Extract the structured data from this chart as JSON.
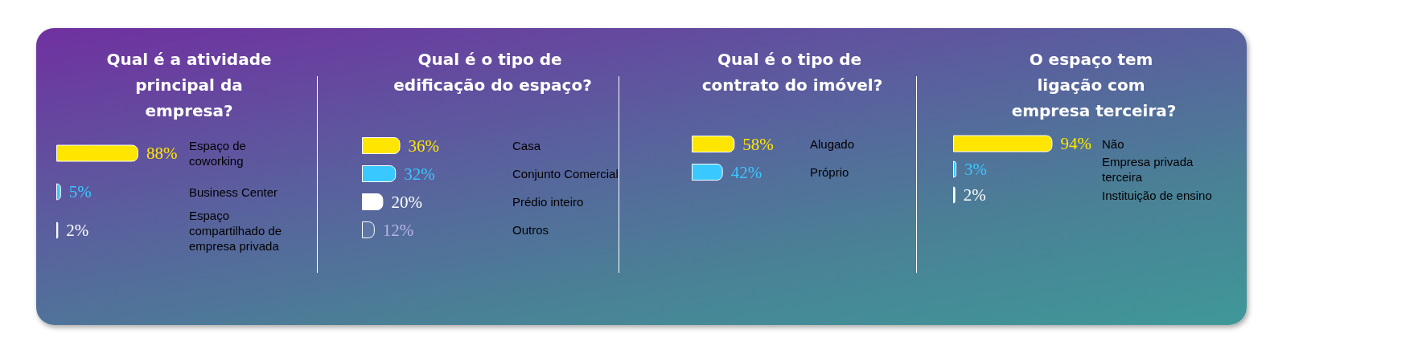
{
  "chart_data": [
    {
      "type": "bar",
      "orientation": "horizontal",
      "title": "Qual é a atividade principal da empresa?",
      "categories": [
        "Espaço de coworking",
        "Business Center",
        "Espaço compartilhado de empresa privada"
      ],
      "values": [
        88,
        5,
        2
      ],
      "colors": [
        "#ffe600",
        "#39c8ff",
        "#ffffff"
      ],
      "value_labels": [
        "88%",
        "5%",
        "2%"
      ]
    },
    {
      "type": "bar",
      "orientation": "horizontal",
      "title": "Qual é o tipo de edificação do espaço?",
      "categories": [
        "Casa",
        "Conjunto Comercial",
        "Prédio inteiro",
        "Outros"
      ],
      "values": [
        36,
        32,
        20,
        12
      ],
      "colors": [
        "#ffe600",
        "#39c8ff",
        "#ffffff",
        "#5d76a4"
      ],
      "value_labels": [
        "36%",
        "32%",
        "20%",
        "12%"
      ]
    },
    {
      "type": "bar",
      "orientation": "horizontal",
      "title": "Qual é o tipo de contrato do imóvel?",
      "categories": [
        "Alugado",
        "Próprio"
      ],
      "values": [
        58,
        42
      ],
      "colors": [
        "#ffe600",
        "#39c8ff"
      ],
      "value_labels": [
        "58%",
        "42%"
      ]
    },
    {
      "type": "bar",
      "orientation": "horizontal",
      "title": "O espaço tem ligação com empresa terceira?",
      "categories": [
        "Não",
        "Empresa privada terceira",
        "Instituição de ensino"
      ],
      "values": [
        94,
        3,
        2
      ],
      "colors": [
        "#ffe600",
        "#39c8ff",
        "#ffffff"
      ],
      "value_labels": [
        "94%",
        "3%",
        "2%"
      ]
    }
  ]
}
